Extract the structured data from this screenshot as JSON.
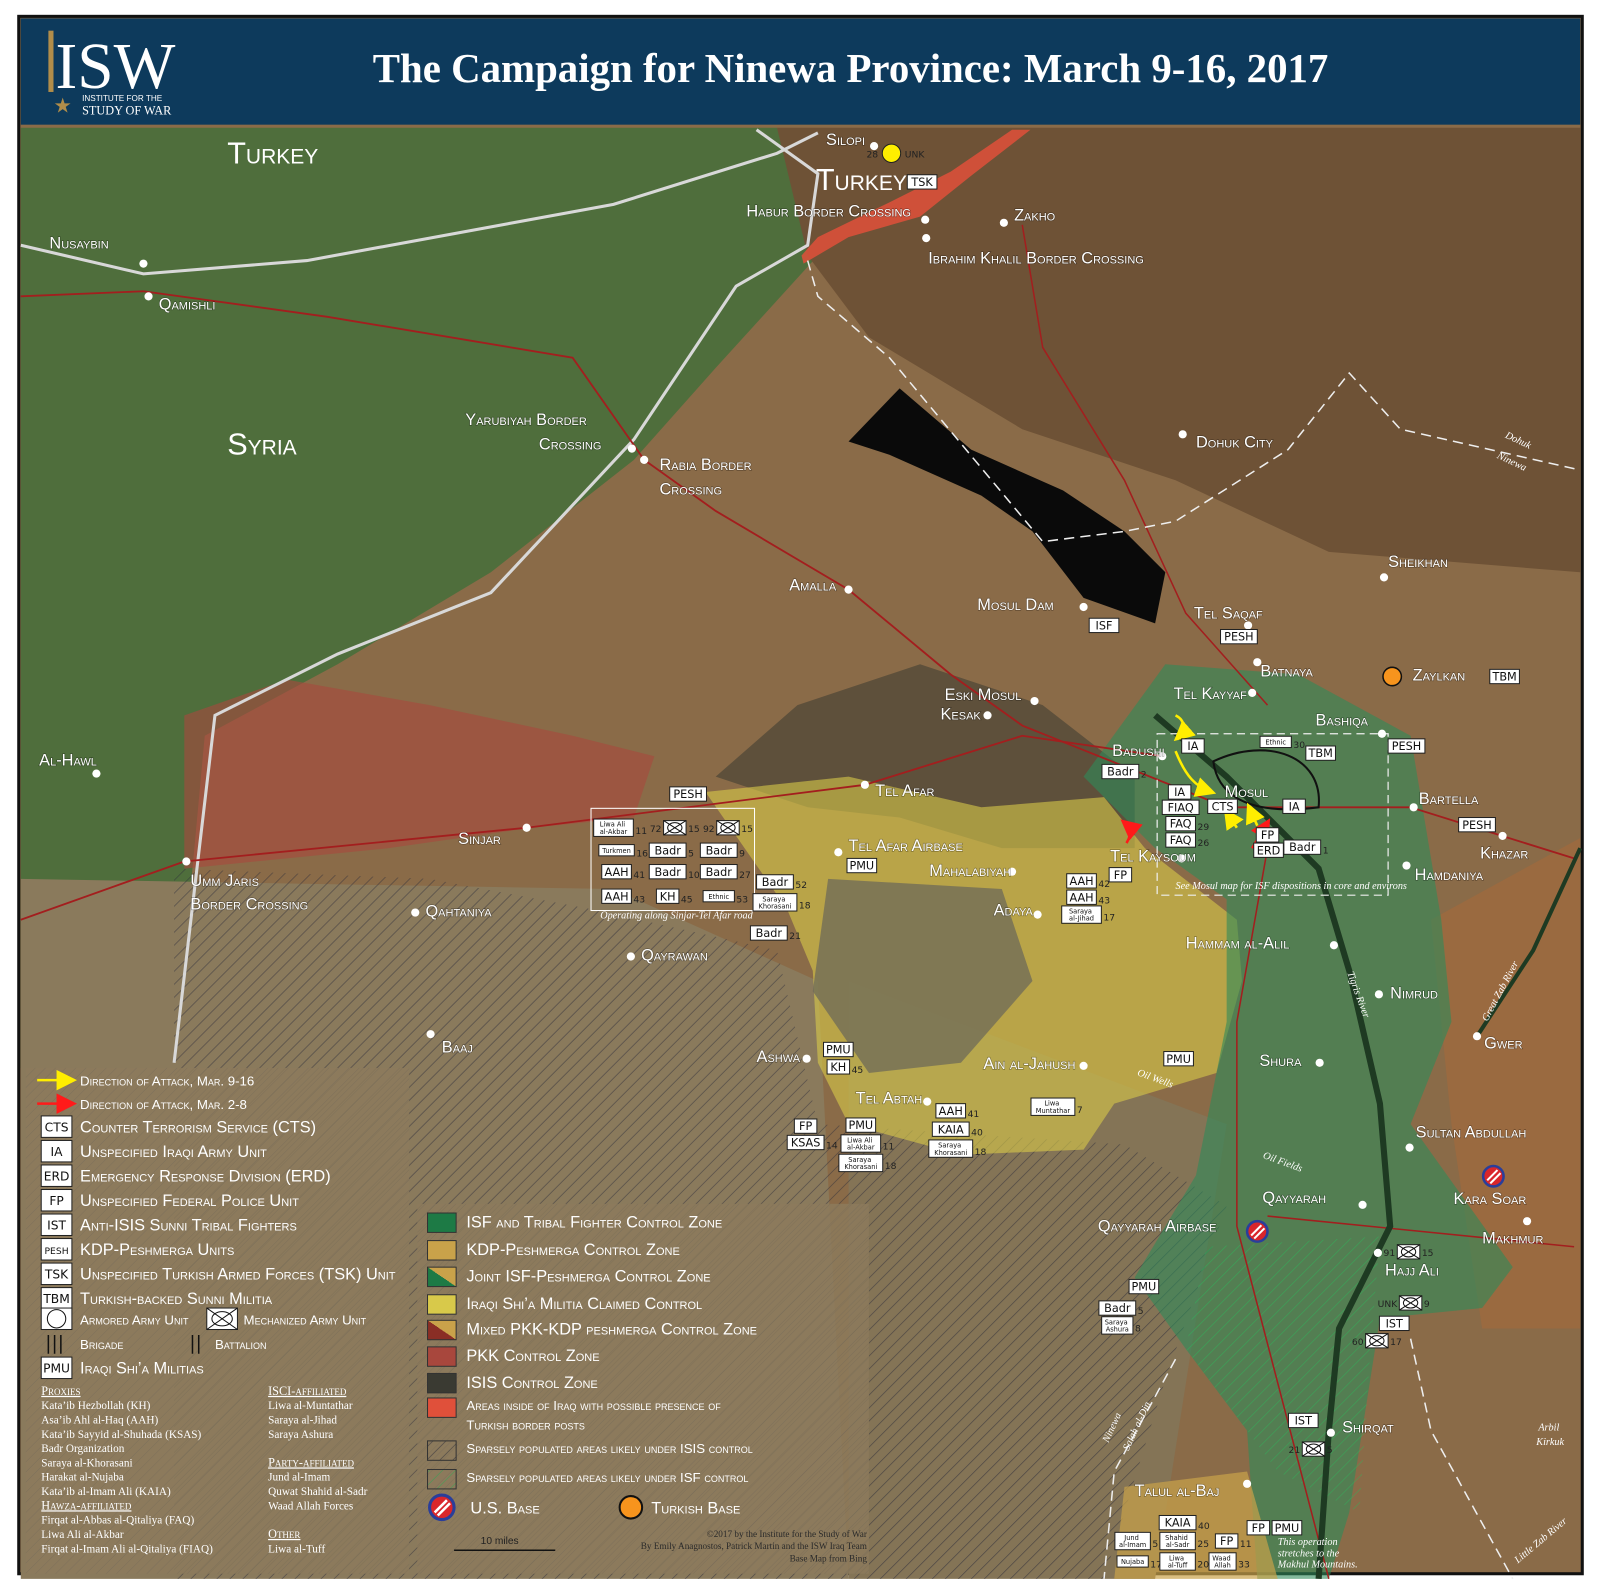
{
  "header": {
    "logo": "ISW",
    "logo_sub1": "INSTITUTE FOR THE",
    "logo_sub2": "STUDY OF WAR",
    "title": "The Campaign for Ninewa Province: March 9-16, 2017"
  },
  "colors": {
    "header_bg": "#0d3a5c",
    "isf_zone": "#2f8a5a",
    "kdp_zone": "#c9a24a",
    "shia_militia_zone": "#d8c94a",
    "pkk_zone": "#a8473d",
    "isis_zone": "#3a3a32",
    "turkish_border_zone": "#e0503a",
    "attack_mar_9_16": "#ffee00",
    "attack_mar_2_8": "#ff1a1a",
    "us_base": "#d9262b",
    "turkish_base": "#f7941d"
  },
  "countries": [
    "Turkey",
    "Syria",
    "Turkey"
  ],
  "places": [
    "Nusaybin",
    "Qamishli",
    "Silopi",
    "Habur Border Crossing",
    "Zakho",
    "Ibrahim Khalil Border Crossing",
    "Yarubiyah Border",
    "Crossing",
    "Rabia Border",
    "Crossing",
    "Dohuk City",
    "Sheikhan",
    "Amalla",
    "Mosul Dam",
    "Tel Saqaf",
    "Batnaya",
    "Zaylkan",
    "Tel Kayyaf",
    "Eski Mosul",
    "Kesak",
    "Bashiqa",
    "Badushi",
    "Mosul",
    "Bartella",
    "Khazar",
    "Hamdaniya",
    "Al-Hawl",
    "Tel Afar",
    "Sinjar",
    "Tel Afar Airbase",
    "Mahalabiyah",
    "Tel Kaysoum",
    "Umm Jaris",
    "Border Crossing",
    "Qahtaniya",
    "Adaya",
    "Hammam al-Alil",
    "Qayrawan",
    "Nimrud",
    "Baaj",
    "Gwer",
    "Shura",
    "Ashwa",
    "Ain al-Jahush",
    "Tel Abtah",
    "Sultan Abdullah",
    "Qayyarah",
    "Kara Soar",
    "Qayyarah Airbase",
    "Makhmur",
    "Hajj Ali",
    "Shirqat",
    "Talul al-Baj"
  ],
  "notes": [
    "Tigris River",
    "Great Zab River",
    "Little Zab River",
    "Oil Wells",
    "Oil Fields",
    "Dohuk",
    "Ninewa",
    "Ninewa",
    "Salah al-Din",
    "Arbil",
    "Kirkuk",
    "See Mosul map for ISF dispositions in core and environs",
    "Operating along Sinjar-Tel Afar road",
    "This operation",
    "stretches to the",
    "Makhul Mountains."
  ],
  "units": [
    {
      "label": "TSK"
    },
    {
      "label": "ISF"
    },
    {
      "label": "PESH"
    },
    {
      "label": "TBM"
    },
    {
      "label": "IA"
    },
    {
      "label": "Ethnic",
      "num": "30"
    },
    {
      "label": "TBM"
    },
    {
      "label": "PESH"
    },
    {
      "label": "Badr",
      "num": "2"
    },
    {
      "label": "IA"
    },
    {
      "label": "FIAQ"
    },
    {
      "label": "FAQ",
      "num": "29"
    },
    {
      "label": "FAQ",
      "num": "26"
    },
    {
      "label": "CTS"
    },
    {
      "label": "IA"
    },
    {
      "label": "FP"
    },
    {
      "label": "ERD"
    },
    {
      "label": "Badr",
      "num": "1"
    },
    {
      "label": "PESH"
    },
    {
      "label": "FP"
    },
    {
      "label": "AAH",
      "num": "42"
    },
    {
      "label": "AAH",
      "num": "43"
    },
    {
      "label": "Saraya al-Jihad",
      "num": "17"
    },
    {
      "label": "PESH"
    },
    {
      "label": "Liwa Ali al-Akbar",
      "num": "11"
    },
    {
      "label": "Turkmen",
      "num": "16"
    },
    {
      "label": "Badr",
      "num": "5"
    },
    {
      "label": "Badr",
      "num": "9"
    },
    {
      "label": "AAH",
      "num": "41"
    },
    {
      "label": "Badr",
      "num": "10"
    },
    {
      "label": "Badr",
      "num": "27"
    },
    {
      "label": "AAH",
      "num": "43"
    },
    {
      "label": "KH",
      "num": "45"
    },
    {
      "label": "Ethnic",
      "num": "53"
    },
    {
      "label": "Badr",
      "num": "52"
    },
    {
      "label": "Saraya Khorasani",
      "num": "18"
    },
    {
      "label": "Badr",
      "num": "21"
    },
    {
      "label": "PMU"
    },
    {
      "label": "PMU"
    },
    {
      "label": "KH",
      "num": "45"
    },
    {
      "label": "PMU"
    },
    {
      "label": "Liwa Muntathar",
      "num": "7"
    },
    {
      "label": "AAH",
      "num": "41"
    },
    {
      "label": "KAIA",
      "num": "40"
    },
    {
      "label": "Saraya Khorasani",
      "num": "18"
    },
    {
      "label": "FP"
    },
    {
      "label": "KSAS",
      "num": "14"
    },
    {
      "label": "PMU"
    },
    {
      "label": "Liwa Ali al-Akbar",
      "num": "11"
    },
    {
      "label": "Saraya Khorasani",
      "num": "18"
    },
    {
      "label": "PMU"
    },
    {
      "label": "Badr",
      "num": "5"
    },
    {
      "label": "Saraya Ashura",
      "num": "8"
    },
    {
      "label": "IST"
    },
    {
      "label": "IST"
    },
    {
      "label": "KAIA",
      "num": "40"
    },
    {
      "label": "Jund al-Imam",
      "num": "5"
    },
    {
      "label": "Shahid al-Sadr",
      "num": "25"
    },
    {
      "label": "FP",
      "num": "11"
    },
    {
      "label": "Nujaba",
      "num": "17"
    },
    {
      "label": "Liwa al-Tuff",
      "num": "20"
    },
    {
      "label": "Waad Allah",
      "num": "33"
    },
    {
      "label": "FP"
    },
    {
      "label": "PMU"
    }
  ],
  "mech_units": [
    {
      "left": "28",
      "right": "UNK"
    },
    {
      "left": "72",
      "right": "15"
    },
    {
      "left": "92",
      "right": "15"
    },
    {
      "left": "91",
      "right": "15"
    },
    {
      "left": "UNK",
      "right": "9"
    },
    {
      "left": "60",
      "right": "17"
    },
    {
      "left": "21",
      "right": "5"
    }
  ],
  "legend_units": {
    "attack_9_16": "Direction of Attack, Mar. 9-16",
    "attack_2_8": "Direction of Attack, Mar. 2-8",
    "items": [
      {
        "code": "CTS",
        "label": "Counter Terrorism Service (CTS)"
      },
      {
        "code": "IA",
        "label": "Unspecified Iraqi Army Unit"
      },
      {
        "code": "ERD",
        "label": "Emergency Response Division (ERD)"
      },
      {
        "code": "FP",
        "label": "Unspecified Federal Police Unit"
      },
      {
        "code": "IST",
        "label": "Anti-ISIS Sunni Tribal Fighters"
      },
      {
        "code": "PESH",
        "label": "KDP-Peshmerga Units"
      },
      {
        "code": "TSK",
        "label": "Unspecified Turkish Armed Forces (TSK) Unit"
      },
      {
        "code": "TBM",
        "label": "Turkish-backed Sunni Militia"
      }
    ],
    "armored": "Armored Army Unit",
    "mechanized": "Mechanized Army Unit",
    "brigade": "Brigade",
    "battalion": "Battalion",
    "pmu_code": "PMU",
    "pmu_label": "Iraqi Shi’a Militias"
  },
  "proxies": {
    "left": [
      {
        "heading": "Proxies",
        "items": [
          "Kata’ib Hezbollah (KH)",
          "Asa’ib Ahl al-Haq (AAH)",
          "Kata’ib Sayyid al-Shuhada (KSAS)",
          "Badr Organization",
          "Saraya al-Khorasani",
          "Harakat al-Nujaba",
          "Kata’ib al-Imam Ali (KAIA)"
        ]
      },
      {
        "heading": "Hawza-affiliated",
        "items": [
          "Firqat al-Abbas al-Qitaliya (FAQ)",
          "Liwa Ali al-Akbar",
          "Firqat al-Imam Ali al-Qitaliya (FIAQ)"
        ]
      }
    ],
    "right": [
      {
        "heading": "ISCI-affiliated",
        "items": [
          "Liwa al-Muntathar",
          "Saraya al-Jihad",
          "Saraya Ashura"
        ]
      },
      {
        "heading": "Party-affiliated",
        "items": [
          "Jund al-Imam",
          "Quwat Shahid al-Sadr",
          "Waad Allah Forces"
        ]
      },
      {
        "heading": "Other",
        "items": [
          "Liwa al-Tuff"
        ]
      }
    ]
  },
  "legend_zones": [
    "ISF and Tribal Fighter Control Zone",
    "KDP-Peshmerga Control Zone",
    "Joint ISF-Peshmerga Control Zone",
    "Iraqi Shi’a Militia Claimed Control",
    "Mixed PKK-KDP peshmerga Control Zone",
    "PKK Control Zone",
    "ISIS Control Zone",
    "Areas inside of Iraq with possible presence of",
    "Turkish border posts",
    "Sparsely populated areas likely under ISIS control",
    "Sparsely populated areas likely under ISF control"
  ],
  "bases": {
    "us": "U.S. Base",
    "turkish": "Turkish Base"
  },
  "scale": "10 miles",
  "credits": [
    "©2017 by the Institute for the Study of War",
    "By Emily Anagnostos, Patrick Martin and the ISW Iraq Team",
    "Base Map from Bing"
  ]
}
